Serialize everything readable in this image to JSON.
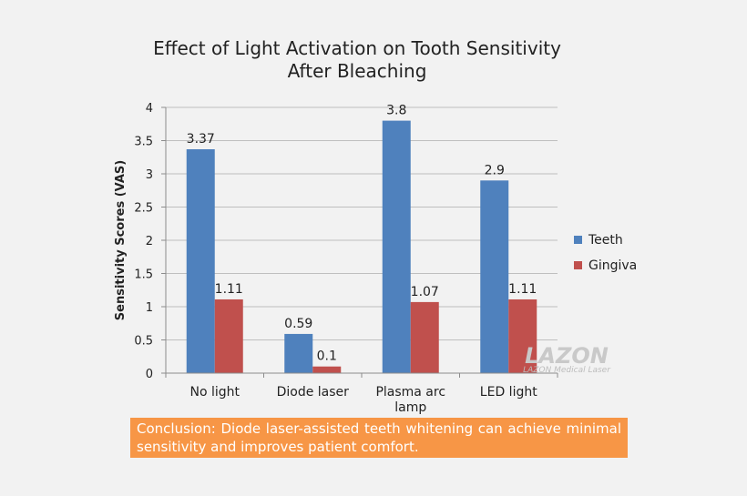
{
  "chart_data": {
    "type": "bar",
    "title": [
      "Effect of Light Activation on Tooth Sensitivity",
      "After Bleaching"
    ],
    "ylabel": "Sensitivity Scores (VAS)",
    "xlabel": "",
    "ylim": [
      0,
      4
    ],
    "yticks": [
      "0",
      "0.5",
      "1",
      "1.5",
      "2",
      "2.5",
      "3",
      "3.5",
      "4"
    ],
    "categories": [
      [
        "No light"
      ],
      [
        "Diode laser"
      ],
      [
        "Plasma arc",
        "lamp"
      ],
      [
        "LED light"
      ]
    ],
    "series": [
      {
        "name": "Teeth",
        "color": "#4f81bd",
        "values": [
          3.37,
          0.59,
          3.8,
          2.9
        ],
        "labels": [
          "3.37",
          "0.59",
          "3.8",
          "2.9"
        ]
      },
      {
        "name": "Gingiva",
        "color": "#c0504d",
        "values": [
          1.11,
          0.1,
          1.07,
          1.11
        ],
        "labels": [
          "1.11",
          "0.1",
          "1.07",
          "1.11"
        ]
      }
    ],
    "grid": true,
    "legend": "right"
  },
  "watermark": {
    "brand": "LAZON",
    "tagline": "LAZON Medical Laser"
  },
  "conclusion": "Conclusion: Diode laser-assisted teeth whitening can achieve minimal sensitivity and improves patient comfort."
}
